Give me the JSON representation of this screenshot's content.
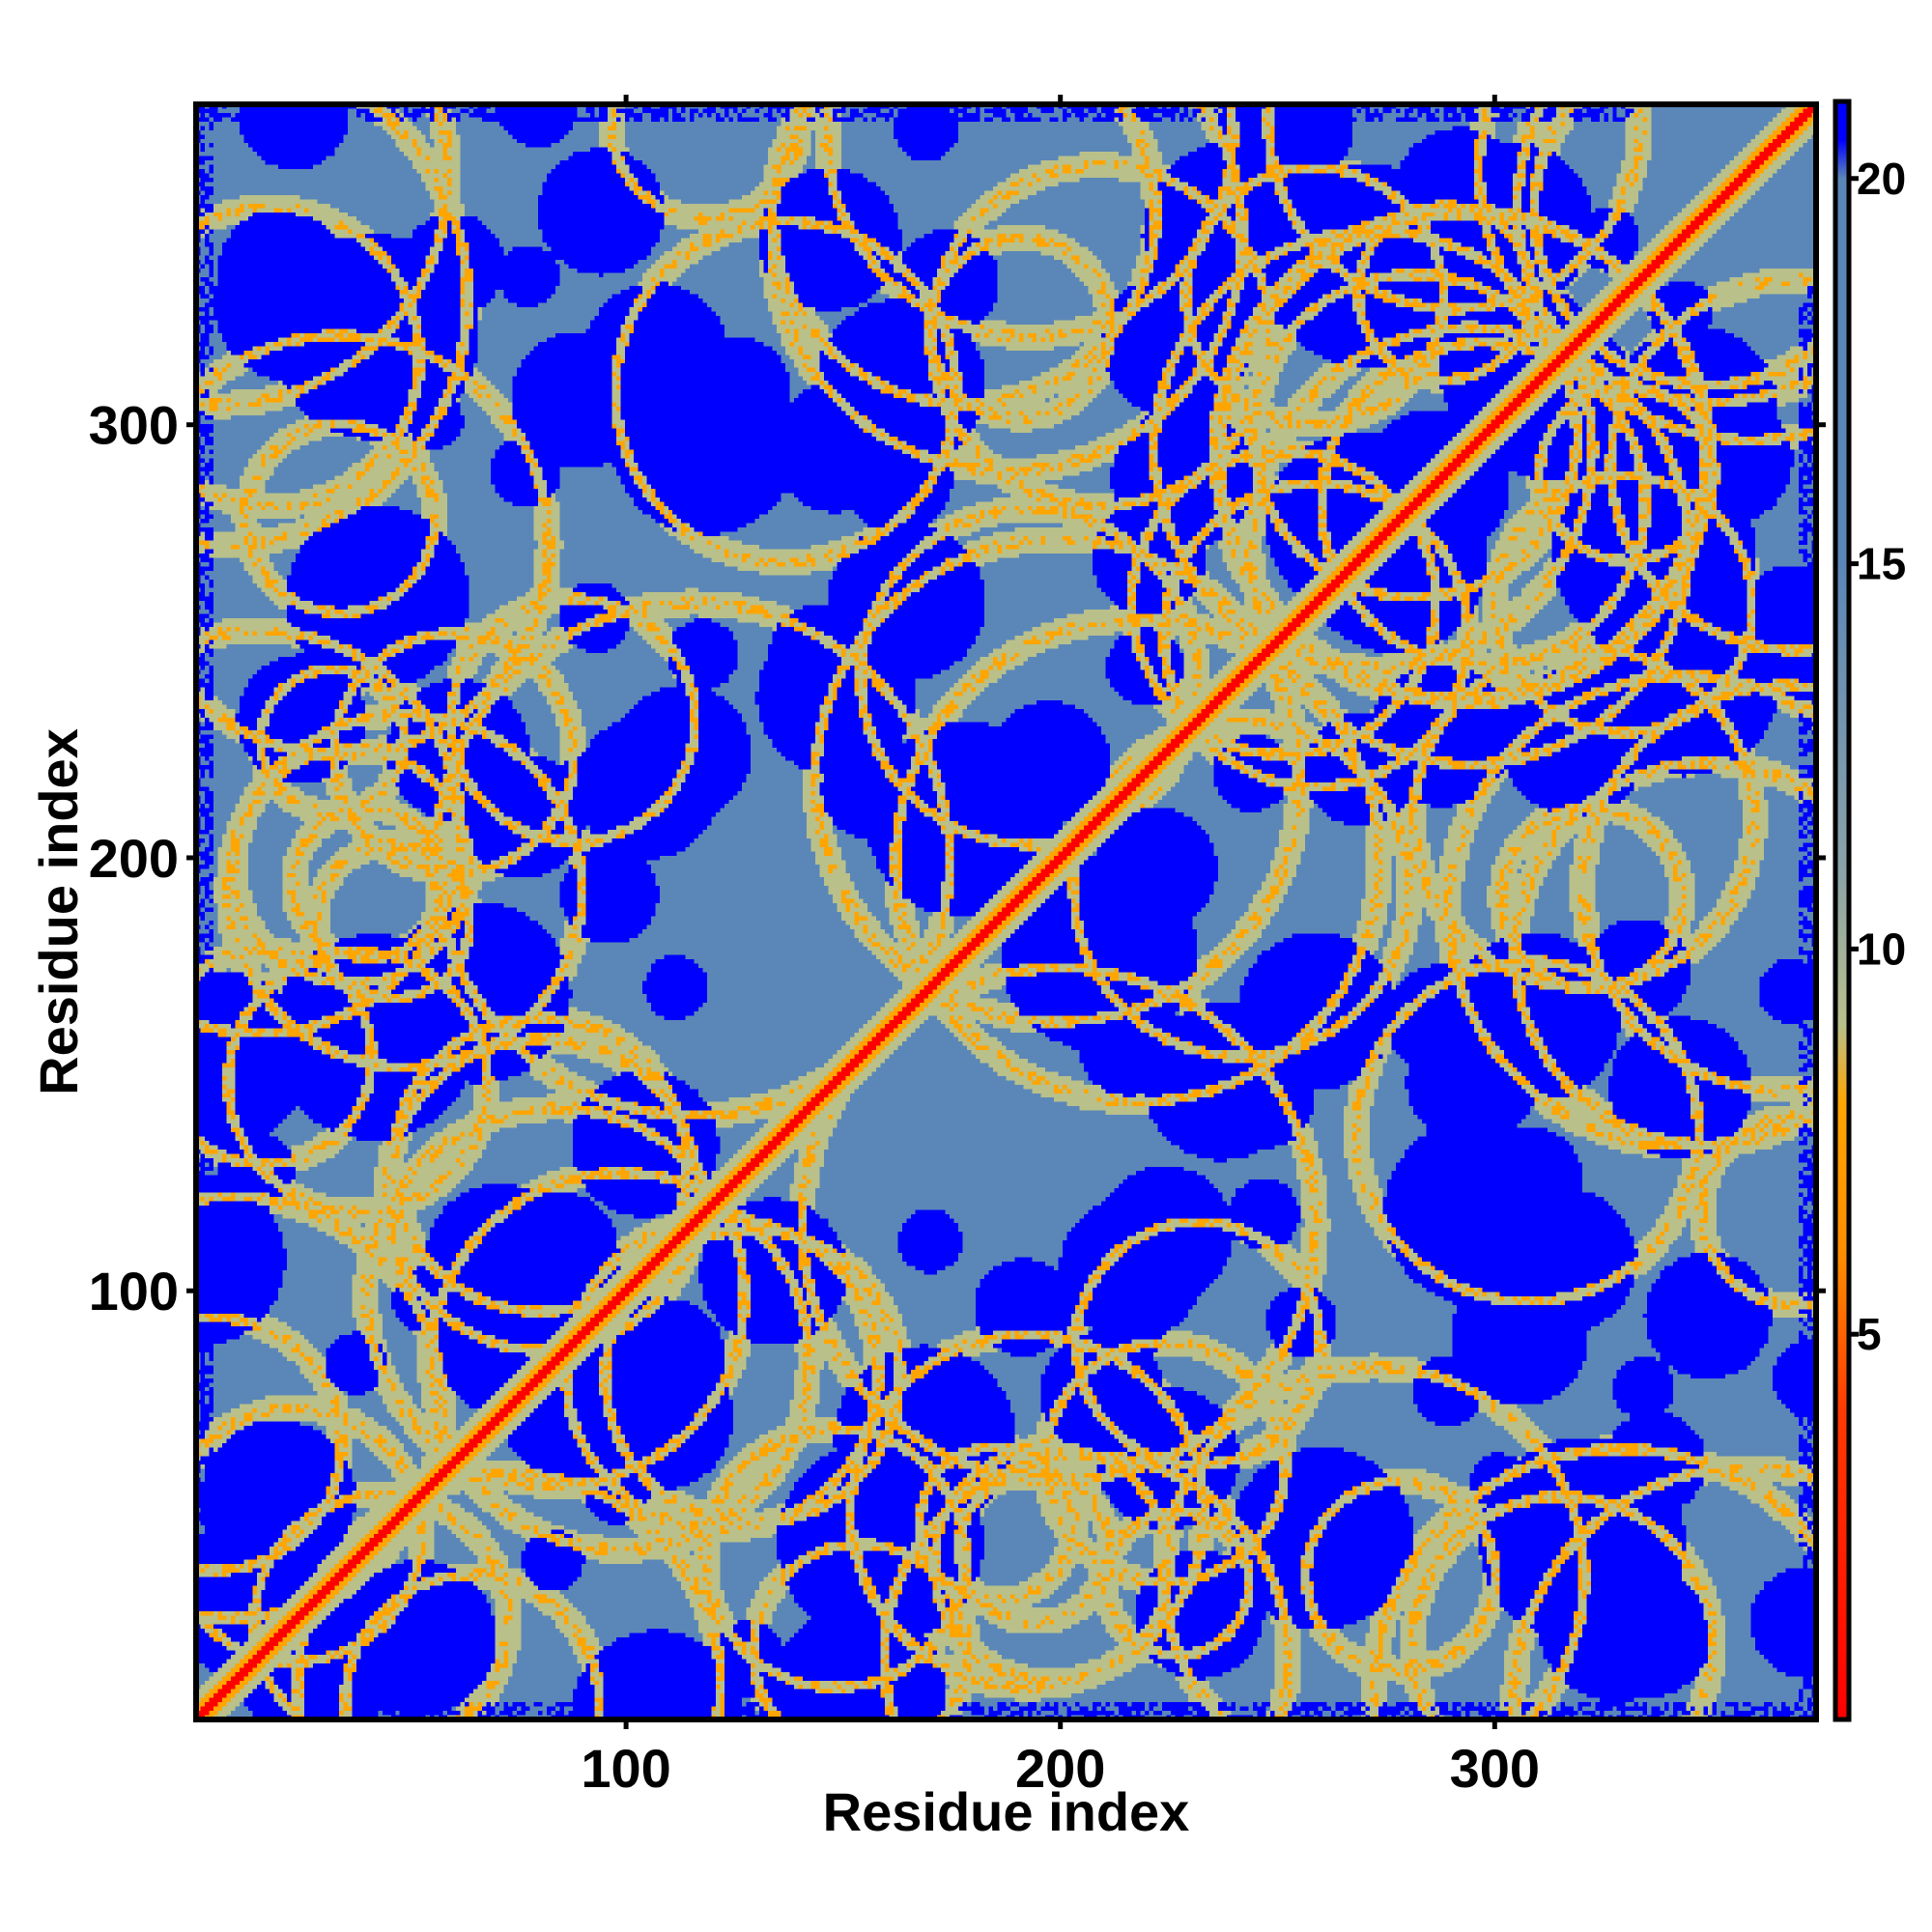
{
  "chart_data": {
    "type": "heatmap",
    "title": "",
    "xlabel": "Residue index",
    "ylabel": "Residue index",
    "n_residues": 374,
    "xlim": [
      1,
      374
    ],
    "ylim": [
      1,
      374
    ],
    "x_ticks": [
      100,
      200,
      300
    ],
    "y_ticks": [
      100,
      200,
      300
    ],
    "colorbar": {
      "ticks": [
        5,
        10,
        15,
        20
      ],
      "range": [
        0,
        21
      ],
      "stops": [
        {
          "value": 0,
          "color": "#ff0000"
        },
        {
          "value": 4,
          "color": "#ff3a00"
        },
        {
          "value": 6,
          "color": "#ff8c00"
        },
        {
          "value": 8,
          "color": "#ffa500"
        },
        {
          "value": 9,
          "color": "#b9c08a"
        },
        {
          "value": 11,
          "color": "#8aa3a8"
        },
        {
          "value": 15,
          "color": "#5b87b8"
        },
        {
          "value": 20,
          "color": "#5b87b8"
        },
        {
          "value": 20.5,
          "color": "#0000ff"
        },
        {
          "value": 21,
          "color": "#0000ff"
        }
      ]
    },
    "colors": {
      "background": "#5b87b8",
      "far": "#0000ff",
      "mid": "#b9c08a",
      "near": "#ffa500",
      "contact": "#ff0000"
    }
  }
}
